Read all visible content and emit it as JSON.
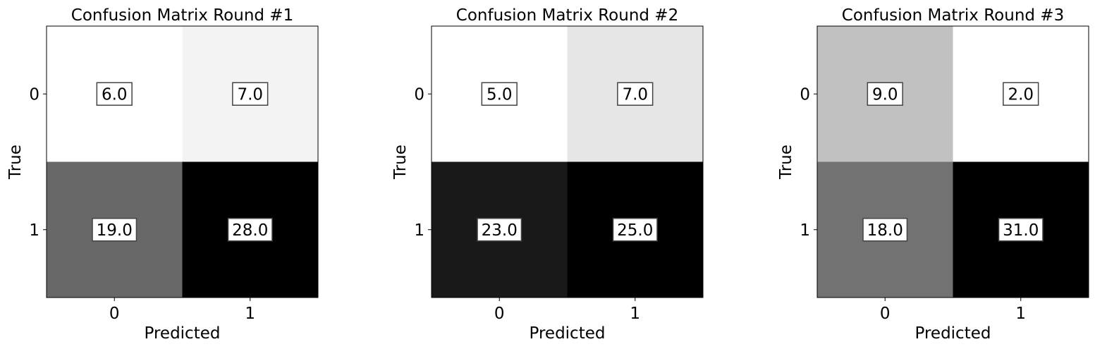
{
  "chart_data": [
    {
      "type": "heatmap",
      "title": "Confusion Matrix Round #1",
      "xlabel": "Predicted",
      "ylabel": "True",
      "x_categories": [
        "0",
        "1"
      ],
      "y_categories": [
        "0",
        "1"
      ],
      "values": [
        [
          6.0,
          7.0
        ],
        [
          19.0,
          28.0
        ]
      ],
      "value_labels": [
        [
          "6.0",
          "7.0"
        ],
        [
          "19.0",
          "28.0"
        ]
      ],
      "colormap": "gray_r",
      "grid": false
    },
    {
      "type": "heatmap",
      "title": "Confusion Matrix Round #2",
      "xlabel": "Predicted",
      "ylabel": "True",
      "x_categories": [
        "0",
        "1"
      ],
      "y_categories": [
        "0",
        "1"
      ],
      "values": [
        [
          5.0,
          7.0
        ],
        [
          23.0,
          25.0
        ]
      ],
      "value_labels": [
        [
          "5.0",
          "7.0"
        ],
        [
          "23.0",
          "25.0"
        ]
      ],
      "colormap": "gray_r",
      "grid": false
    },
    {
      "type": "heatmap",
      "title": "Confusion Matrix Round #3",
      "xlabel": "Predicted",
      "ylabel": "True",
      "x_categories": [
        "0",
        "1"
      ],
      "y_categories": [
        "0",
        "1"
      ],
      "values": [
        [
          9.0,
          2.0
        ],
        [
          18.0,
          31.0
        ]
      ],
      "value_labels": [
        [
          "9.0",
          "2.0"
        ],
        [
          "18.0",
          "31.0"
        ]
      ],
      "colormap": "gray_r",
      "grid": false
    }
  ]
}
